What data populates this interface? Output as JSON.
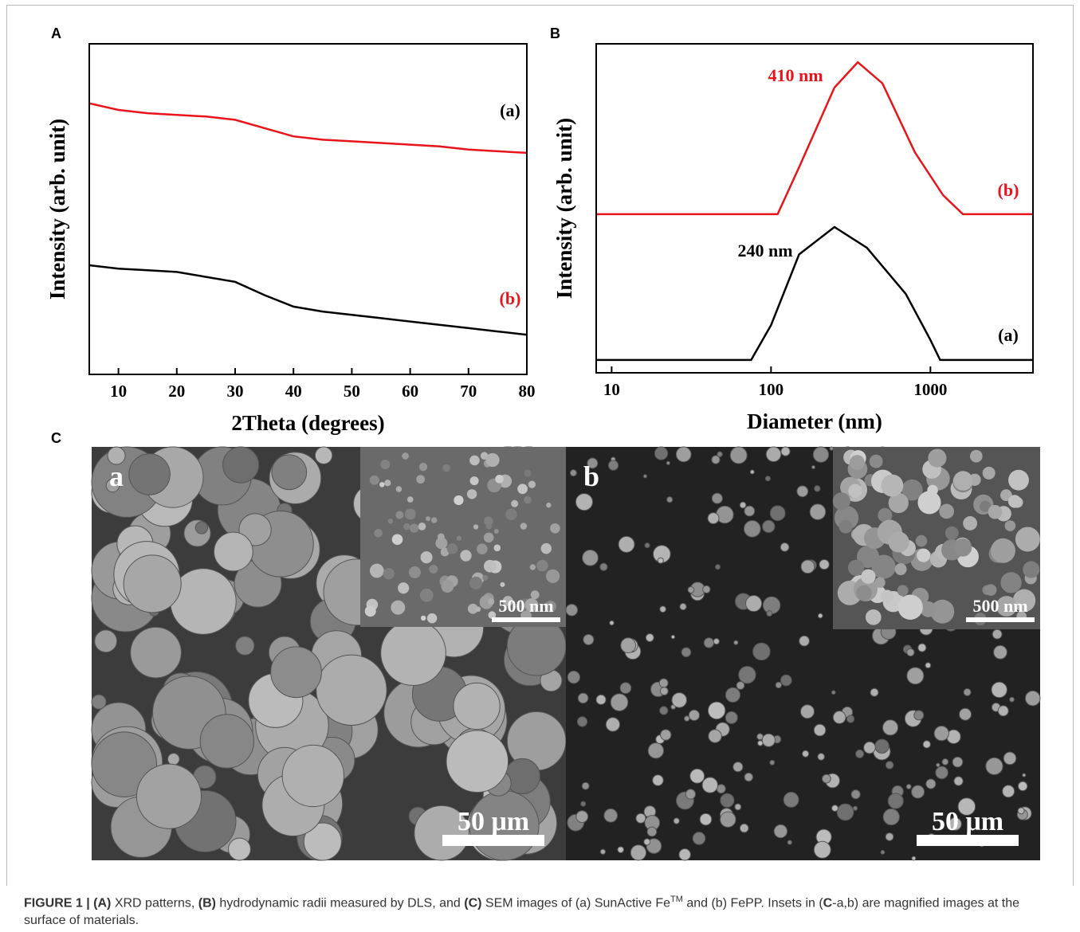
{
  "chart_data": [
    {
      "type": "line",
      "panel": "A",
      "x_label": "2Theta (degrees)",
      "y_label": "Intensity (arb. unit)",
      "xlim": [
        5,
        80
      ],
      "ylim": [
        0,
        100
      ],
      "xticks": [
        10,
        20,
        30,
        40,
        50,
        60,
        70,
        80
      ],
      "xlog": false,
      "x": [
        5,
        10,
        15,
        20,
        25,
        30,
        35,
        40,
        45,
        50,
        55,
        60,
        65,
        70,
        75,
        80
      ],
      "series": [
        {
          "name": "(a)",
          "color": "#000000",
          "values": [
            33,
            32,
            31.5,
            31,
            29.5,
            28,
            24,
            20.5,
            19,
            18,
            17,
            16,
            15,
            14,
            13,
            12
          ]
        },
        {
          "name": "(b)",
          "color": "#e8141a",
          "values": [
            82,
            80,
            79,
            78.5,
            78,
            77,
            74.5,
            72,
            71,
            70.5,
            70,
            69.5,
            69,
            68,
            67.5,
            67
          ]
        }
      ],
      "annotations": []
    },
    {
      "type": "line",
      "panel": "B",
      "x_label": "Diameter (nm)",
      "y_label": "Intensity (arb. unit)",
      "xlim": [
        8,
        4400
      ],
      "ylim": [
        0,
        100
      ],
      "xticks": [
        10,
        100,
        1000
      ],
      "xlog": true,
      "series": [
        {
          "name": "(a)",
          "color": "#000000",
          "x": [
            8,
            75,
            100,
            150,
            250,
            400,
            700,
            1000,
            1150,
            4400
          ],
          "values": [
            3.9,
            3.9,
            14.5,
            36,
            44.3,
            38,
            24,
            10,
            3.9,
            3.9
          ]
        },
        {
          "name": "(b)",
          "color": "#e8141a",
          "x": [
            8,
            110,
            150,
            250,
            350,
            500,
            800,
            1200,
            1600,
            4400
          ],
          "values": [
            48.2,
            48.2,
            62.5,
            86.7,
            94.4,
            88,
            67,
            54,
            48.2,
            48.2
          ]
        }
      ],
      "annotations": [
        {
          "text": "410 nm",
          "color": "#e8141a"
        },
        {
          "text": "240 nm",
          "color": "#000000"
        }
      ]
    }
  ],
  "panel_c": {
    "panel": "C",
    "images": [
      {
        "label": "a",
        "inset_scale": "500 nm",
        "scale": "50 μm"
      },
      {
        "label": "b",
        "inset_scale": "500 nm",
        "scale": "50 μm"
      }
    ]
  },
  "caption": [
    {
      "text": "FIGURE 1 | (A)",
      "bold": true
    },
    {
      "text": " XRD patterns, "
    },
    {
      "text": "(B)",
      "bold": true
    },
    {
      "text": " hydrodynamic radii measured by DLS, and "
    },
    {
      "text": "(C)",
      "bold": true
    },
    {
      "text": " SEM images of (a) SunActive Fe"
    },
    {
      "text": "TM",
      "sup": true
    },
    {
      "text": " and (b) FePP. Insets in ("
    },
    {
      "text": "C",
      "bold": true
    },
    {
      "text": "-a,b) are magnified images at the surface of materials."
    }
  ]
}
